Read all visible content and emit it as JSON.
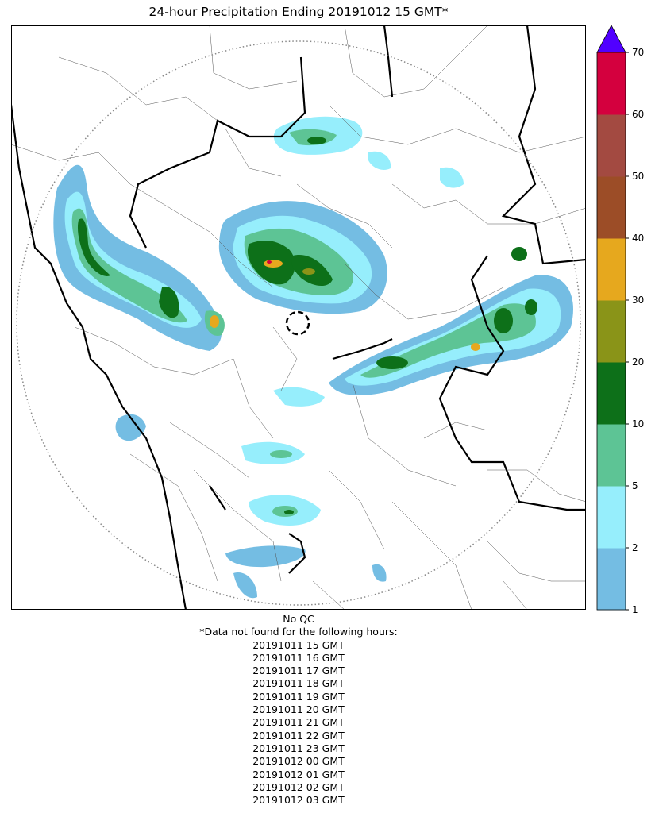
{
  "title": "24-hour Precipitation Ending 20191012 15 GMT*",
  "colorbar": {
    "levels": [
      1,
      2,
      5,
      10,
      20,
      30,
      40,
      50,
      60,
      70
    ],
    "colors": [
      "#74bde3",
      "#96eefc",
      "#5dc495",
      "#0d7019",
      "#8a9418",
      "#e6a81e",
      "#9c4d27",
      "#a34a41",
      "#d4003e"
    ],
    "extend_color": "#5100ff",
    "tick_labels": [
      "1",
      "2",
      "5",
      "10",
      "20",
      "30",
      "40",
      "50",
      "60",
      "70"
    ]
  },
  "qc_note": "No QC",
  "missing_header": "*Data not found for the following hours:",
  "missing_hours": [
    "20191011 15 GMT",
    "20191011 16 GMT",
    "20191011 17 GMT",
    "20191011 18 GMT",
    "20191011 19 GMT",
    "20191011 20 GMT",
    "20191011 21 GMT",
    "20191011 22 GMT",
    "20191011 23 GMT",
    "20191012 00 GMT",
    "20191012 01 GMT",
    "20191012 02 GMT",
    "20191012 03 GMT"
  ]
}
